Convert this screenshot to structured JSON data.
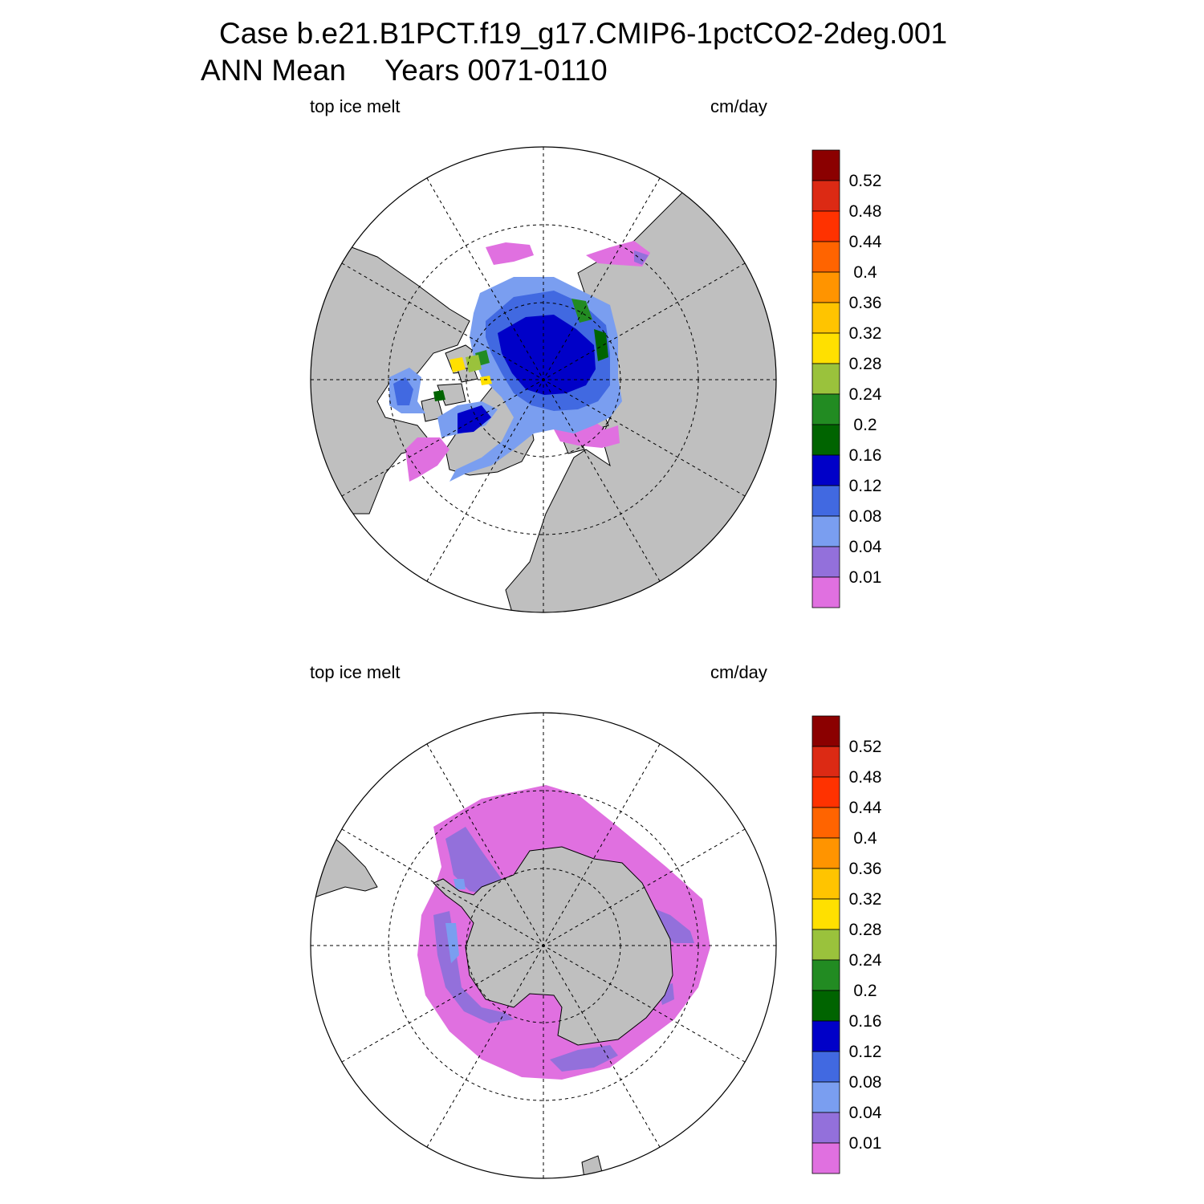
{
  "header": {
    "case_line": "Case b.e21.B1PCT.f19_g17.CMIP6-1pctCO2-2deg.001",
    "period": "ANN Mean",
    "years": "Years 0071-0110"
  },
  "panels": [
    {
      "hemisphere": "north",
      "left_label": "top ice melt",
      "right_label": "cm/day"
    },
    {
      "hemisphere": "south",
      "left_label": "top ice melt",
      "right_label": "cm/day"
    }
  ],
  "legend": {
    "levels": [
      "0.01",
      "0.04",
      "0.08",
      "0.12",
      "0.16",
      "0.2",
      "0.24",
      "0.28",
      "0.32",
      "0.36",
      "0.4",
      "0.44",
      "0.48",
      "0.52"
    ],
    "colors": [
      "#e070e0",
      "#9370db",
      "#7a9ef0",
      "#4169e1",
      "#0000c8",
      "#006400",
      "#228b22",
      "#9ac23c",
      "#ffe000",
      "#ffc400",
      "#ff9400",
      "#ff6400",
      "#ff3200",
      "#dc2a14",
      "#8b0000"
    ]
  },
  "map_colors": {
    "land": "#bfbfbf",
    "ocean": "#ffffff"
  }
}
